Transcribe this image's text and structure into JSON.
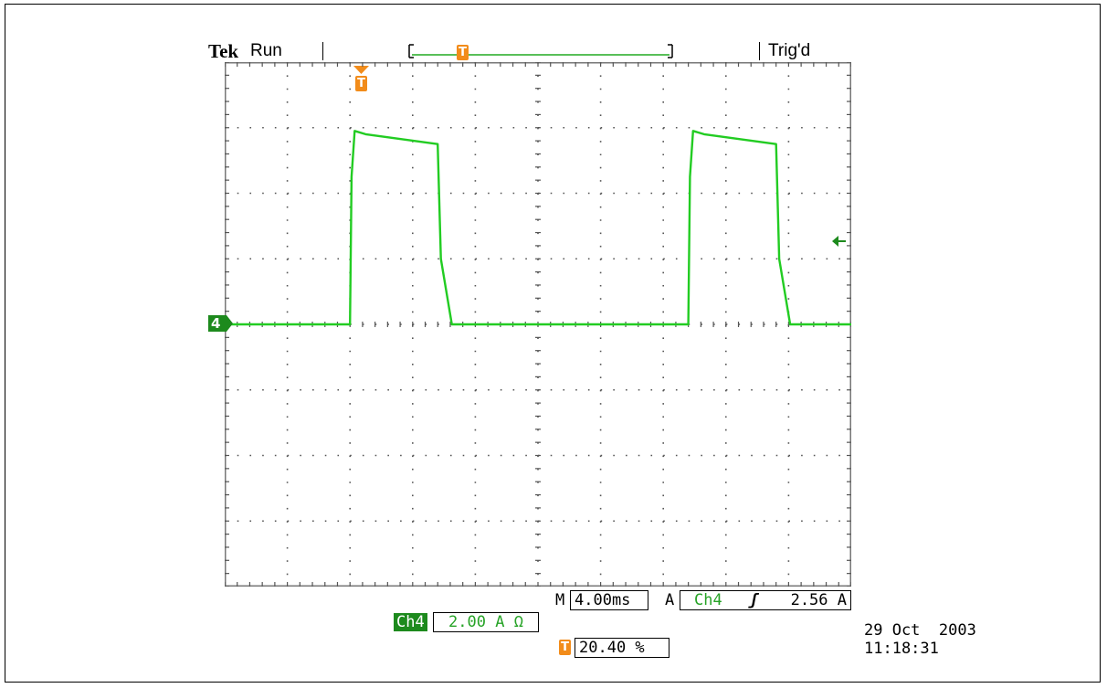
{
  "header": {
    "brand": "Tek",
    "state": "Run",
    "trigger_status": "Trig'd",
    "trigger_marker": "T"
  },
  "display": {
    "divisions_x": 10,
    "divisions_y": 8,
    "channel_marker": "4",
    "trace_color": "#22cc22",
    "grid_color": "#555555"
  },
  "chart_data": {
    "type": "line",
    "title": "",
    "xlabel": "",
    "ylabel": "",
    "x_unit": "ms",
    "y_unit": "A",
    "xlim": [
      -8.0,
      32.0
    ],
    "ylim": [
      -8.0,
      8.0
    ],
    "grid": true,
    "series": [
      {
        "name": "Ch4",
        "x": [
          -8.0,
          0.0,
          0.1,
          0.3,
          1.0,
          5.6,
          5.8,
          6.5,
          21.6,
          21.7,
          21.9,
          22.6,
          27.2,
          27.4,
          28.1,
          32.0
        ],
        "y": [
          0.0,
          0.0,
          4.5,
          5.9,
          5.8,
          5.5,
          2.0,
          0.0,
          0.0,
          4.5,
          5.9,
          5.8,
          5.5,
          2.0,
          0.0,
          0.0
        ]
      }
    ],
    "trigger_level": 2.56,
    "trigger_position_percent": 20.4
  },
  "status": {
    "timebase_prefix": "M",
    "timebase": "4.00ms",
    "trigger_prefix": "A",
    "trigger_source": "Ch4",
    "trigger_slope": "ʃ",
    "trigger_level": "2.56 A",
    "channel_label": "Ch4",
    "channel_scale": "2.00 A Ω",
    "trigger_position": "20.40 %"
  },
  "timestamp": {
    "date": "29 Oct  2003",
    "time": "11:18:31"
  }
}
